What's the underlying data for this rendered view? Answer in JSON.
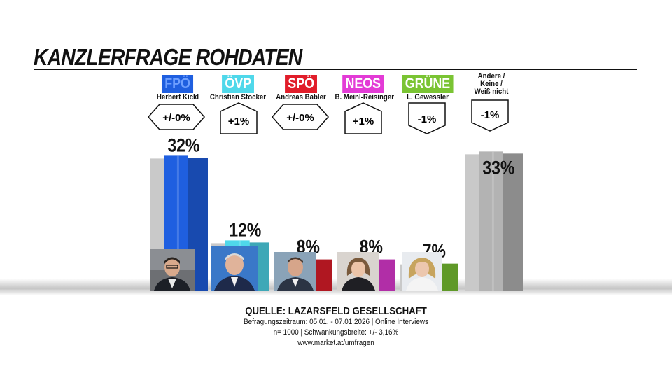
{
  "title": "KANZLERFRAGE ROHDATEN",
  "colors": {
    "fpo": "#1f5fe0",
    "ovp": "#4fd8ea",
    "spo": "#e11d2a",
    "neos": "#e33bd6",
    "grune": "#7ac433",
    "others": "#b3b3b3"
  },
  "parties": [
    {
      "party": "FPÖ",
      "leader": "Herbert Kickl",
      "change": "+/-0%",
      "change_shape": "hexagon"
    },
    {
      "party": "ÖVP",
      "leader": "Christian Stocker",
      "change": "+1%",
      "change_shape": "pentagon-up"
    },
    {
      "party": "SPÖ",
      "leader": "Andreas Babler",
      "change": "+/-0%",
      "change_shape": "hexagon"
    },
    {
      "party": "NEOS",
      "leader": "B. Meinl-Reisinger",
      "change": "+1%",
      "change_shape": "pentagon-up"
    },
    {
      "party": "GRÜNE",
      "leader": "L. Gewessler",
      "change": "-1%",
      "change_shape": "pentagon-down"
    },
    {
      "party": "",
      "leader": "Andere / Keine / Weiß nicht",
      "leader_lines": [
        "Andere /",
        "Keine /",
        "Weiß nicht"
      ],
      "change": "-1%",
      "change_shape": "pentagon-down"
    }
  ],
  "chart_data": {
    "type": "bar",
    "categories": [
      "Herbert Kickl",
      "Christian Stocker",
      "Andreas Babler",
      "B. Meinl-Reisinger",
      "L. Gewessler",
      "Andere / Keine / Weiß nicht"
    ],
    "values": [
      32,
      12,
      8,
      8,
      7,
      33
    ],
    "value_labels": [
      "32%",
      "12%",
      "8%",
      "8%",
      "7%",
      "33%"
    ],
    "previous_values_shown_as_grey_bars": true,
    "ylim": [
      0,
      36
    ],
    "grid": false,
    "legend": "none"
  },
  "source": {
    "title": "QUELLE: LAZARSFELD GESELLSCHAFT",
    "line1": "Befragungszeitraum: 05.01. - 07.01.2026 | Online Interviews",
    "line2": "n= 1000 | Schwankungsbreite: +/- 3,16%",
    "line3": "www.market.at/umfragen"
  }
}
